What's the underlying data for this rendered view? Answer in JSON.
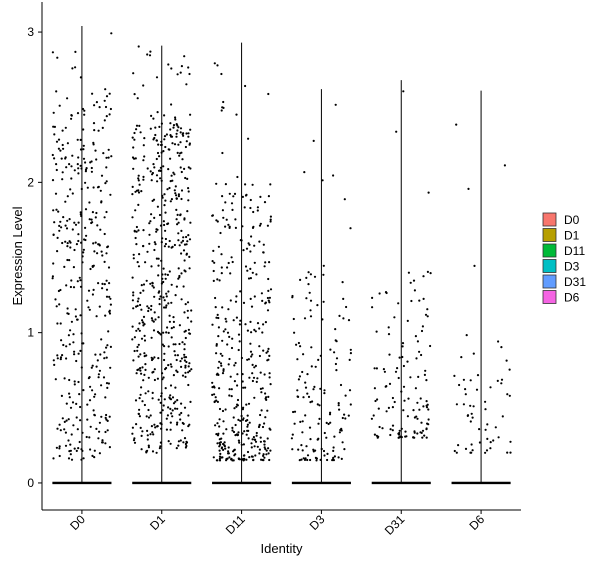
{
  "chart_data": {
    "type": "violin-jitter",
    "title": "",
    "xlabel": "Identity",
    "ylabel": "Expression Level",
    "ylim": [
      -0.18,
      3.2
    ],
    "yticks": [
      0,
      1,
      2,
      3
    ],
    "categories": [
      "D0",
      "D1",
      "D11",
      "D3",
      "D31",
      "D6"
    ],
    "colors": {
      "D0": "#F8766D",
      "D1": "#B79F00",
      "D11": "#00BA38",
      "D3": "#00BFC4",
      "D31": "#619CFF",
      "D6": "#F564E3"
    },
    "groups": [
      {
        "name": "D0",
        "max": 3.04,
        "nonzero_points": 380,
        "value_range": [
          0.15,
          2.6
        ]
      },
      {
        "name": "D1",
        "max": 2.91,
        "nonzero_points": 560,
        "value_range": [
          0.2,
          2.4
        ]
      },
      {
        "name": "D11",
        "max": 2.93,
        "nonzero_points": 400,
        "value_range": [
          0.15,
          2.0
        ]
      },
      {
        "name": "D3",
        "max": 2.62,
        "nonzero_points": 150,
        "value_range": [
          0.15,
          1.5
        ]
      },
      {
        "name": "D31",
        "max": 2.68,
        "nonzero_points": 130,
        "value_range": [
          0.3,
          1.4
        ]
      },
      {
        "name": "D6",
        "max": 2.61,
        "nonzero_points": 60,
        "value_range": [
          0.2,
          1.0
        ]
      }
    ],
    "legend": {
      "position": "right",
      "entries": [
        "D0",
        "D1",
        "D11",
        "D3",
        "D31",
        "D6"
      ]
    },
    "grid": false
  }
}
